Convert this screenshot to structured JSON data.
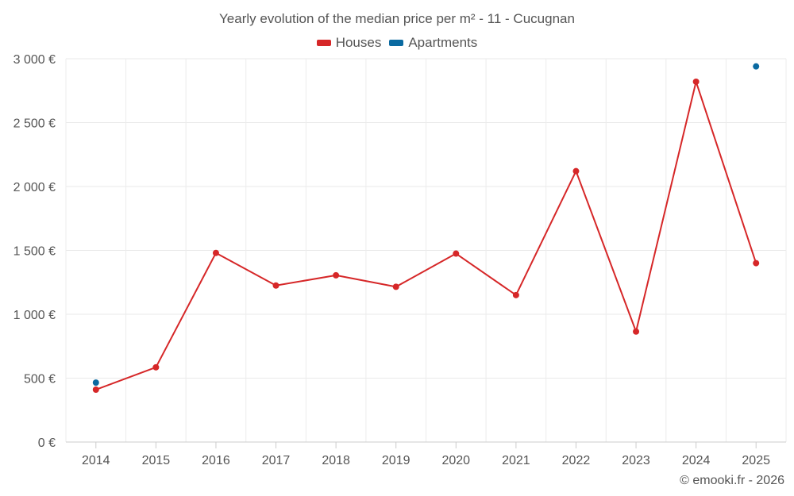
{
  "chart_data": {
    "type": "line",
    "title": "Yearly evolution of the median price per m² - 11 - Cucugnan",
    "categories": [
      "2014",
      "2015",
      "2016",
      "2017",
      "2018",
      "2019",
      "2020",
      "2021",
      "2022",
      "2023",
      "2024",
      "2025"
    ],
    "series": [
      {
        "name": "Houses",
        "color": "#d62728",
        "values": [
          410,
          585,
          1480,
          1225,
          1305,
          1215,
          1475,
          1150,
          2120,
          865,
          2820,
          1400
        ]
      },
      {
        "name": "Apartments",
        "color": "#0a6aa1",
        "values": [
          465,
          null,
          null,
          null,
          null,
          null,
          null,
          null,
          null,
          null,
          null,
          2940
        ]
      }
    ],
    "yticks": [
      "0 €",
      "500 €",
      "1 000 €",
      "1 500 €",
      "2 000 €",
      "2 500 €",
      "3 000 €"
    ],
    "ylim": [
      0,
      3000
    ],
    "xlabel": "",
    "ylabel": "",
    "grid": true,
    "legend_position": "top-center"
  },
  "credit": "© emooki.fr - 2026"
}
